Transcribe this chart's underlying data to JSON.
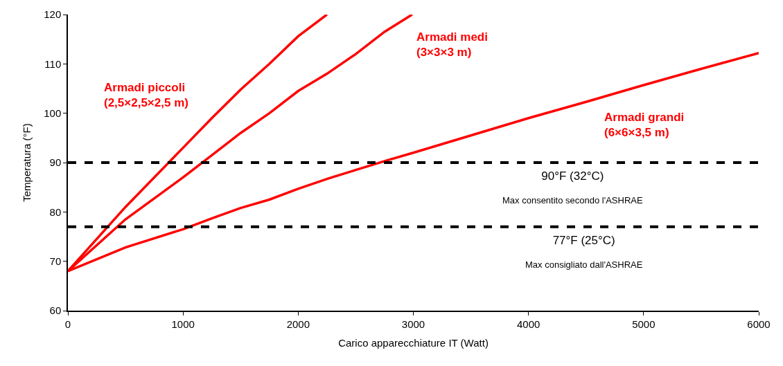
{
  "chart_data": {
    "type": "line",
    "xlabel": "Carico apparecchiature IT (Watt)",
    "ylabel": "Temperatura (°F)",
    "xlim": [
      0,
      6000
    ],
    "xticks": [
      0,
      1000,
      2000,
      3000,
      4000,
      5000,
      6000
    ],
    "ylim": [
      60,
      120
    ],
    "yticks": [
      60,
      70,
      80,
      90,
      100,
      110,
      120
    ],
    "legend": false,
    "marker": "none",
    "line_style": "solid",
    "series": [
      {
        "name": "Armadi piccoli\n(2,5×2,5×2,5 m)",
        "color": "#ff0000",
        "x": [
          0,
          500,
          1000,
          1250,
          1500,
          1750,
          2000,
          2250
        ],
        "values": [
          68,
          81,
          93,
          99,
          104.8,
          110,
          115.6,
          120
        ]
      },
      {
        "name": "Armadi medi\n(3×3×3 m)",
        "color": "#ff0000",
        "x": [
          0,
          500,
          1000,
          1250,
          1500,
          1750,
          2000,
          2250,
          2500,
          2750,
          2990
        ],
        "values": [
          68,
          78.5,
          87,
          91.5,
          96,
          100,
          104.5,
          108,
          112,
          116.5,
          120
        ]
      },
      {
        "name": "Armadi grandi\n(6×6×3,5 m)",
        "color": "#ff0000",
        "x": [
          0,
          500,
          1000,
          1250,
          1500,
          1750,
          2000,
          2250,
          2500,
          2750,
          3000,
          3500,
          4000,
          4500,
          5000,
          5500,
          6000
        ],
        "values": [
          68,
          72.8,
          76.5,
          78.7,
          80.8,
          82.5,
          84.7,
          86.7,
          88.5,
          90.3,
          92,
          95.5,
          99,
          102.3,
          105.7,
          109,
          112.2
        ]
      }
    ],
    "ref_lines": [
      {
        "axis": "y",
        "value": 90,
        "label": "90°F (32°C)\nMax consentito secondo l'ASHRAE",
        "color": "#000000",
        "line_style": "dashed"
      },
      {
        "axis": "y",
        "value": 77,
        "label": "77°F (25°C)\nMax consigliato dall'ASHRAE",
        "color": "#000000",
        "line_style": "dashed"
      }
    ]
  }
}
